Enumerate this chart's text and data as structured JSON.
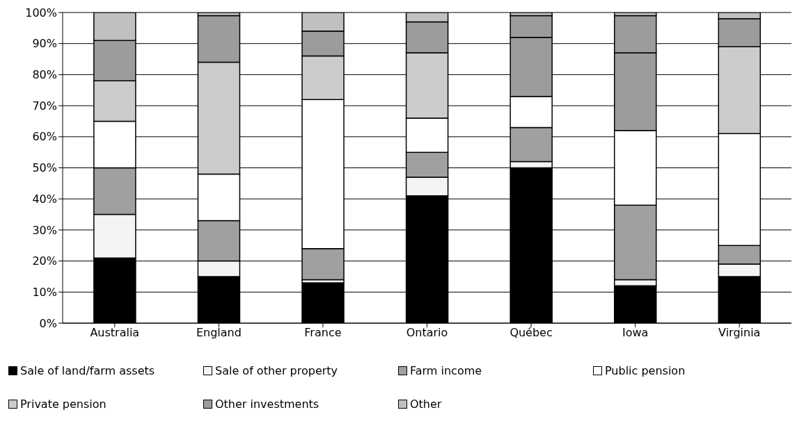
{
  "chart_data": {
    "type": "bar",
    "stacked": true,
    "categories": [
      "Australia",
      "England",
      "France",
      "Ontario",
      "Québec",
      "Iowa",
      "Virginia"
    ],
    "series": [
      {
        "name": "Sale of land/farm assets",
        "color": "#000000",
        "values": [
          21,
          15,
          13,
          41,
          50,
          12,
          15
        ]
      },
      {
        "name": "Sale of other property",
        "color": "#f4f4f4",
        "values": [
          14,
          5,
          1,
          6,
          2,
          2,
          4
        ]
      },
      {
        "name": "Farm income",
        "color": "#a0a0a0",
        "values": [
          15,
          13,
          10,
          8,
          11,
          24,
          6
        ]
      },
      {
        "name": "Public pension",
        "color": "#ffffff",
        "values": [
          15,
          15,
          48,
          11,
          10,
          24,
          36
        ]
      },
      {
        "name": "Private pension",
        "color": "#cccccc",
        "colors": [
          "#cccccc",
          "#cccccc",
          "#cccccc",
          "#cccccc",
          "#9c9c9c",
          "#9c9c9c",
          "#cccccc"
        ],
        "values": [
          13,
          36,
          14,
          21,
          19,
          25,
          28
        ]
      },
      {
        "name": "Other investments",
        "color": "#9c9c9c",
        "values": [
          13,
          15,
          8,
          10,
          7,
          12,
          9
        ]
      },
      {
        "name": "Other",
        "color": "#c0c0c0",
        "values": [
          9,
          1,
          6,
          3,
          1,
          1,
          2
        ]
      }
    ],
    "ylim": [
      0,
      100
    ],
    "yticks": [
      {
        "value": 0,
        "label": "0%"
      },
      {
        "value": 10,
        "label": "10%"
      },
      {
        "value": 20,
        "label": "20%"
      },
      {
        "value": 30,
        "label": "30%"
      },
      {
        "value": 40,
        "label": "40%"
      },
      {
        "value": 50,
        "label": "50%"
      },
      {
        "value": 60,
        "label": "60%"
      },
      {
        "value": 70,
        "label": "70%"
      },
      {
        "value": 80,
        "label": "80%"
      },
      {
        "value": 90,
        "label": "90%"
      },
      {
        "value": 100,
        "label": "100%"
      }
    ],
    "grid": "y",
    "legend": "bottom"
  }
}
